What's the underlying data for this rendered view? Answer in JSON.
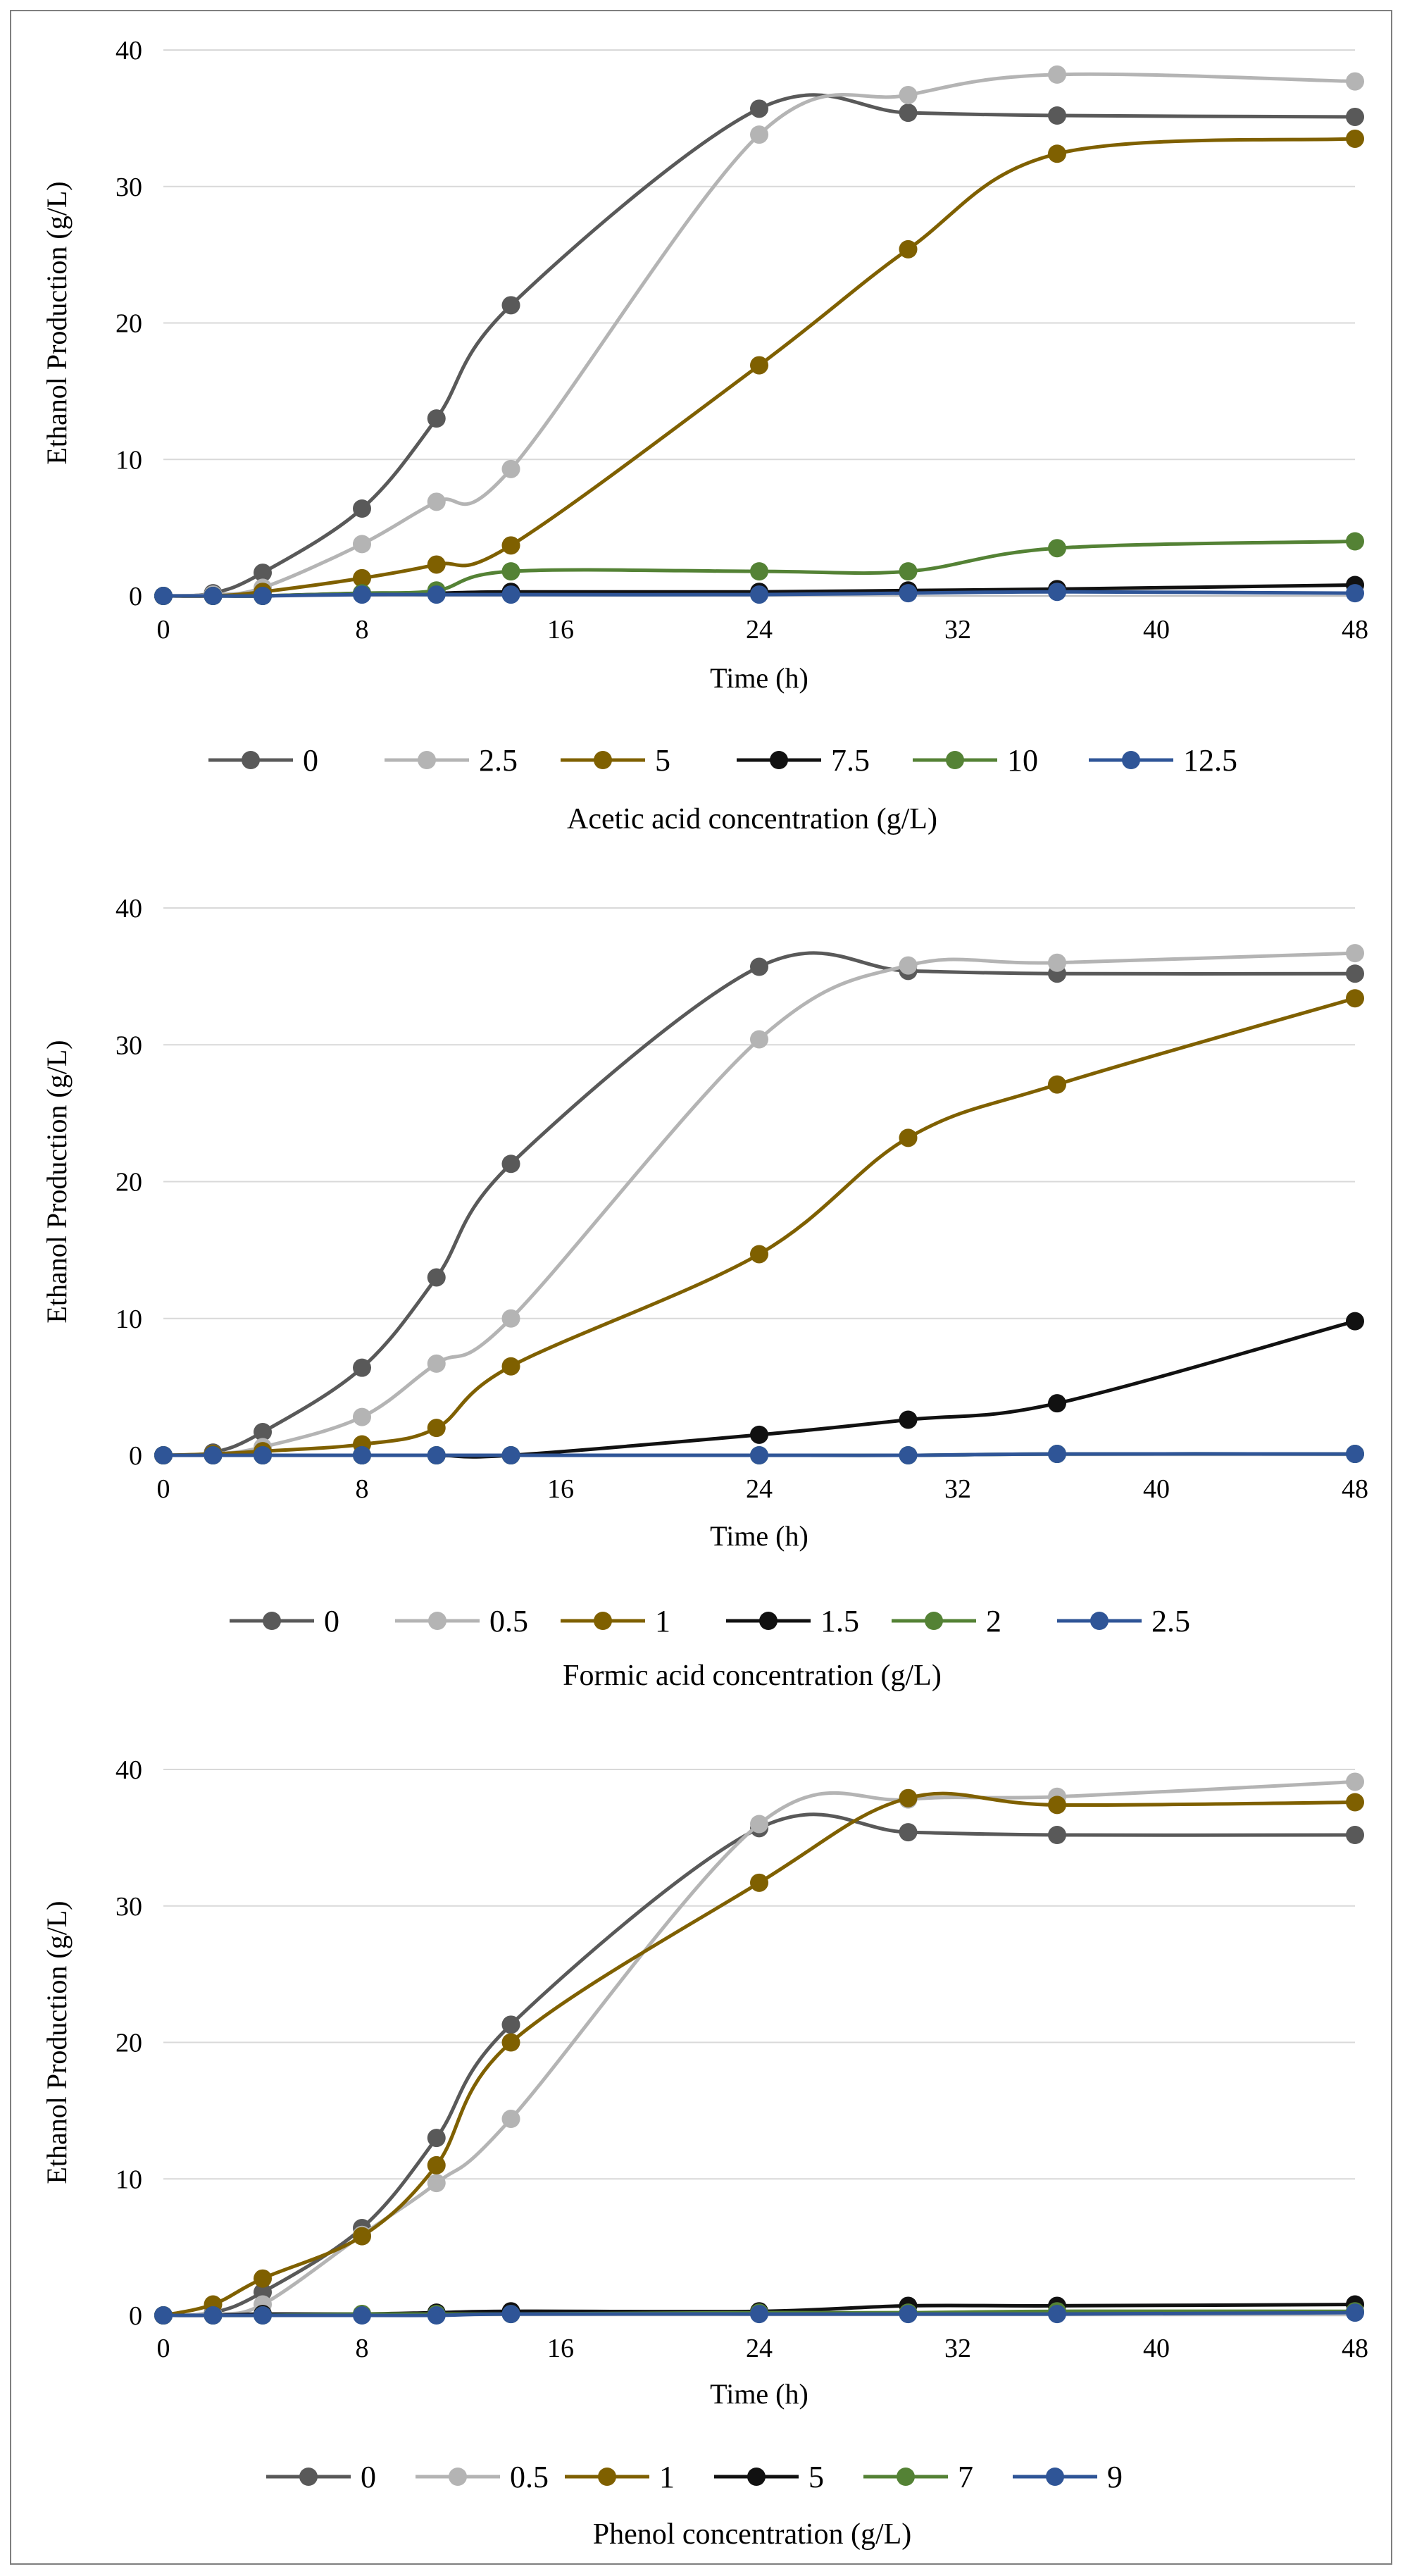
{
  "chart_data": [
    {
      "type": "line",
      "title": "",
      "xlabel": "Time (h)",
      "ylabel": "Ethanol Production (g/L)",
      "xlim": [
        0,
        48
      ],
      "ylim": [
        0,
        40
      ],
      "xticks": [
        "0",
        "8",
        "16",
        "24",
        "32",
        "40",
        "48"
      ],
      "yticks": [
        "0",
        "10",
        "20",
        "30",
        "40"
      ],
      "legend_title": "Acetic acid concentration (g/L)",
      "x": [
        0,
        2,
        4,
        8,
        11,
        14,
        24,
        30,
        36,
        48
      ],
      "series": [
        {
          "name": "0",
          "color": "#595959",
          "values": [
            0,
            0.2,
            1.7,
            6.4,
            13.0,
            21.3,
            35.7,
            35.4,
            35.2,
            35.1
          ]
        },
        {
          "name": "2.5",
          "color": "#b4b4b4",
          "values": [
            0,
            0.1,
            0.6,
            3.8,
            6.9,
            9.3,
            33.8,
            36.7,
            38.2,
            37.7
          ]
        },
        {
          "name": "5",
          "color": "#7f6000",
          "values": [
            0,
            0,
            0.3,
            1.3,
            2.3,
            3.7,
            16.9,
            25.4,
            32.4,
            33.5
          ]
        },
        {
          "name": "7.5",
          "color": "#111111",
          "values": [
            0,
            0,
            0,
            0.2,
            0.2,
            0.3,
            0.3,
            0.4,
            0.5,
            0.8
          ]
        },
        {
          "name": "10",
          "color": "#548235",
          "values": [
            0,
            0,
            0,
            0.2,
            0.4,
            1.8,
            1.8,
            1.8,
            3.5,
            4.0
          ]
        },
        {
          "name": "12.5",
          "color": "#2f5597",
          "values": [
            0,
            0,
            0,
            0.1,
            0.1,
            0.1,
            0.1,
            0.2,
            0.3,
            0.2
          ]
        }
      ]
    },
    {
      "type": "line",
      "title": "",
      "xlabel": "Time (h)",
      "ylabel": "Ethanol Production (g/L)",
      "xlim": [
        0,
        48
      ],
      "ylim": [
        0,
        40
      ],
      "xticks": [
        "0",
        "8",
        "16",
        "24",
        "32",
        "40",
        "48"
      ],
      "yticks": [
        "0",
        "10",
        "20",
        "30",
        "40"
      ],
      "legend_title": "Formic acid concentration (g/L)",
      "x": [
        0,
        2,
        4,
        8,
        11,
        14,
        24,
        30,
        36,
        48
      ],
      "series": [
        {
          "name": "0",
          "color": "#595959",
          "values": [
            0,
            0.2,
            1.7,
            6.4,
            13.0,
            21.3,
            35.7,
            35.4,
            35.2,
            35.2
          ]
        },
        {
          "name": "0.5",
          "color": "#b4b4b4",
          "values": [
            0,
            0.1,
            0.6,
            2.8,
            6.7,
            10.0,
            30.4,
            35.8,
            36.0,
            36.7
          ]
        },
        {
          "name": "1",
          "color": "#7f6000",
          "values": [
            0,
            0.1,
            0.3,
            0.8,
            2.0,
            6.5,
            14.7,
            23.2,
            27.1,
            33.4
          ]
        },
        {
          "name": "1.5",
          "color": "#111111",
          "values": [
            0,
            0,
            0,
            0,
            0,
            0,
            1.5,
            2.6,
            3.8,
            9.8
          ]
        },
        {
          "name": "2",
          "color": "#548235",
          "values": [
            0,
            0,
            0,
            0,
            0,
            0,
            0,
            0,
            0.1,
            0.1
          ]
        },
        {
          "name": "2.5",
          "color": "#2f5597",
          "values": [
            0,
            0,
            0,
            0,
            0,
            0,
            0,
            0,
            0.1,
            0.1
          ]
        }
      ]
    },
    {
      "type": "line",
      "title": "",
      "xlabel": "Time (h)",
      "ylabel": "Ethanol Production (g/L)",
      "xlim": [
        0,
        48
      ],
      "ylim": [
        0,
        40
      ],
      "xticks": [
        "0",
        "8",
        "16",
        "24",
        "32",
        "40",
        "48"
      ],
      "yticks": [
        "0",
        "10",
        "20",
        "30",
        "40"
      ],
      "legend_title": "Phenol concentration (g/L)",
      "x": [
        0,
        2,
        4,
        8,
        11,
        14,
        24,
        30,
        36,
        48
      ],
      "series": [
        {
          "name": "0",
          "color": "#595959",
          "values": [
            0,
            0.2,
            1.7,
            6.4,
            13.0,
            21.3,
            35.7,
            35.4,
            35.2,
            35.2
          ]
        },
        {
          "name": "0.5",
          "color": "#b4b4b4",
          "values": [
            0,
            0.1,
            0.8,
            5.9,
            9.7,
            14.4,
            36.0,
            37.8,
            38.0,
            39.1
          ]
        },
        {
          "name": "1",
          "color": "#7f6000",
          "values": [
            0,
            0.8,
            2.7,
            5.8,
            11.0,
            20.0,
            31.7,
            37.9,
            37.4,
            37.6
          ]
        },
        {
          "name": "5",
          "color": "#111111",
          "values": [
            0,
            0,
            0.1,
            0.1,
            0.2,
            0.3,
            0.3,
            0.7,
            0.7,
            0.8
          ]
        },
        {
          "name": "7",
          "color": "#548235",
          "values": [
            0,
            0,
            0,
            0.1,
            0.1,
            0.1,
            0.2,
            0.2,
            0.3,
            0.3
          ]
        },
        {
          "name": "9",
          "color": "#2f5597",
          "values": [
            0,
            0,
            0,
            0,
            0,
            0.1,
            0.1,
            0.1,
            0.1,
            0.2
          ]
        }
      ]
    }
  ]
}
